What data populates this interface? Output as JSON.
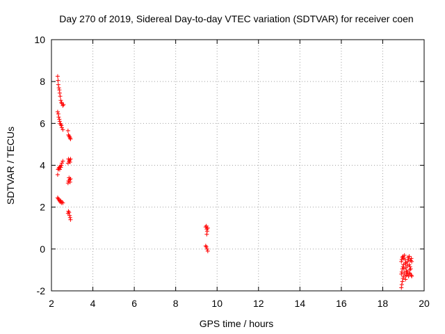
{
  "chart_data": {
    "type": "scatter",
    "title": "Day 270 of 2019, Sidereal Day-to-day VTEC variation (SDTVAR) for receiver coen",
    "xlabel": "GPS time / hours",
    "ylabel": "SDTVAR / TECUs",
    "xlim": [
      2,
      20
    ],
    "ylim": [
      -2,
      10
    ],
    "xticks": [
      "2",
      "4",
      "6",
      "8",
      "10",
      "12",
      "14",
      "16",
      "18",
      "20"
    ],
    "yticks": [
      "-2",
      "0",
      "2",
      "4",
      "6",
      "8",
      "10"
    ],
    "grid": true,
    "marker": "+",
    "series_color": "#ff0000",
    "series": [
      {
        "name": "SDTVAR",
        "points": [
          [
            2.3,
            8.25
          ],
          [
            2.32,
            8.05
          ],
          [
            2.33,
            7.85
          ],
          [
            2.36,
            7.7
          ],
          [
            2.38,
            7.6
          ],
          [
            2.4,
            7.45
          ],
          [
            2.42,
            7.3
          ],
          [
            2.45,
            7.1
          ],
          [
            2.48,
            7.0
          ],
          [
            2.5,
            6.95
          ],
          [
            2.55,
            6.85
          ],
          [
            2.58,
            6.9
          ],
          [
            2.3,
            6.55
          ],
          [
            2.33,
            6.45
          ],
          [
            2.35,
            6.3
          ],
          [
            2.38,
            6.2
          ],
          [
            2.4,
            6.1
          ],
          [
            2.42,
            6.0
          ],
          [
            2.45,
            5.95
          ],
          [
            2.48,
            5.9
          ],
          [
            2.5,
            5.8
          ],
          [
            2.55,
            5.7
          ],
          [
            2.3,
            3.55
          ],
          [
            2.32,
            3.8
          ],
          [
            2.35,
            3.85
          ],
          [
            2.38,
            3.9
          ],
          [
            2.4,
            3.8
          ],
          [
            2.42,
            3.95
          ],
          [
            2.45,
            3.9
          ],
          [
            2.48,
            4.0
          ],
          [
            2.5,
            4.1
          ],
          [
            2.55,
            4.2
          ],
          [
            2.3,
            2.45
          ],
          [
            2.33,
            2.4
          ],
          [
            2.36,
            2.35
          ],
          [
            2.4,
            2.3
          ],
          [
            2.42,
            2.25
          ],
          [
            2.45,
            2.3
          ],
          [
            2.48,
            2.2
          ],
          [
            2.5,
            2.25
          ],
          [
            2.55,
            2.2
          ],
          [
            2.8,
            5.65
          ],
          [
            2.82,
            5.45
          ],
          [
            2.85,
            5.4
          ],
          [
            2.88,
            5.35
          ],
          [
            2.9,
            5.3
          ],
          [
            2.92,
            5.25
          ],
          [
            2.8,
            4.1
          ],
          [
            2.82,
            4.3
          ],
          [
            2.85,
            4.2
          ],
          [
            2.88,
            4.25
          ],
          [
            2.9,
            4.15
          ],
          [
            2.92,
            4.3
          ],
          [
            2.8,
            3.15
          ],
          [
            2.82,
            3.25
          ],
          [
            2.85,
            3.4
          ],
          [
            2.88,
            3.3
          ],
          [
            2.9,
            3.2
          ],
          [
            2.92,
            3.35
          ],
          [
            2.8,
            1.7
          ],
          [
            2.82,
            1.8
          ],
          [
            2.85,
            1.75
          ],
          [
            2.88,
            1.6
          ],
          [
            2.9,
            1.5
          ],
          [
            2.92,
            1.4
          ],
          [
            9.45,
            1.05
          ],
          [
            9.48,
            1.1
          ],
          [
            9.5,
            0.95
          ],
          [
            9.52,
            0.85
          ],
          [
            9.55,
            1.0
          ],
          [
            9.5,
            0.7
          ],
          [
            9.45,
            0.15
          ],
          [
            9.48,
            0.1
          ],
          [
            9.52,
            0.0
          ],
          [
            9.55,
            -0.1
          ],
          [
            18.9,
            -1.85
          ],
          [
            18.92,
            -1.7
          ],
          [
            18.95,
            -1.55
          ],
          [
            18.98,
            -1.4
          ],
          [
            19.0,
            -1.3
          ],
          [
            18.9,
            -1.2
          ],
          [
            18.92,
            -1.1
          ],
          [
            18.95,
            -0.95
          ],
          [
            18.98,
            -0.85
          ],
          [
            19.0,
            -0.75
          ],
          [
            18.9,
            -0.6
          ],
          [
            18.92,
            -0.5
          ],
          [
            18.95,
            -0.4
          ],
          [
            18.98,
            -0.35
          ],
          [
            19.0,
            -0.45
          ],
          [
            19.05,
            -0.3
          ],
          [
            19.08,
            -0.5
          ],
          [
            19.1,
            -0.7
          ],
          [
            19.12,
            -0.9
          ],
          [
            19.15,
            -1.05
          ],
          [
            19.05,
            -1.15
          ],
          [
            19.08,
            -1.3
          ],
          [
            19.1,
            -1.45
          ],
          [
            19.15,
            -1.25
          ],
          [
            19.18,
            -0.8
          ],
          [
            19.2,
            -0.6
          ],
          [
            19.22,
            -0.4
          ],
          [
            19.25,
            -0.5
          ],
          [
            19.28,
            -0.75
          ],
          [
            19.3,
            -1.0
          ],
          [
            19.2,
            -1.2
          ],
          [
            19.25,
            -1.3
          ],
          [
            19.3,
            -1.15
          ],
          [
            19.32,
            -0.85
          ],
          [
            19.35,
            -0.55
          ],
          [
            19.38,
            -0.45
          ],
          [
            19.4,
            -0.6
          ],
          [
            19.35,
            -0.95
          ],
          [
            19.38,
            -1.25
          ],
          [
            19.4,
            -1.3
          ],
          [
            19.02,
            -0.95
          ],
          [
            19.12,
            -0.65
          ],
          [
            19.18,
            -1.1
          ],
          [
            19.28,
            -0.35
          ],
          [
            19.32,
            -1.2
          ]
        ]
      }
    ]
  }
}
